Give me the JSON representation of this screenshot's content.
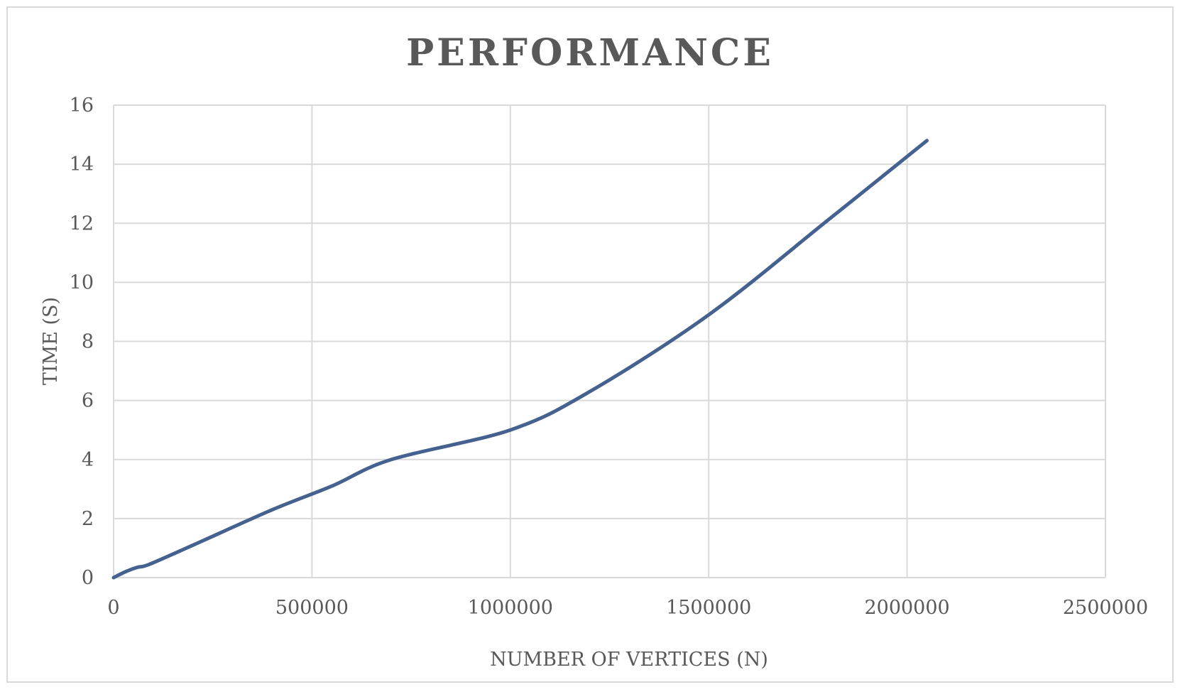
{
  "chart_data": {
    "type": "line",
    "title": "PERFORMANCE",
    "xlabel": "NUMBER OF VERTICES (N)",
    "ylabel": "TIME (S)",
    "xlim": [
      0,
      2500000
    ],
    "ylim": [
      0,
      16
    ],
    "x_ticks": [
      0,
      500000,
      1000000,
      1500000,
      2000000,
      2500000
    ],
    "y_ticks": [
      0,
      2,
      4,
      6,
      8,
      10,
      12,
      14,
      16
    ],
    "x_tick_labels": [
      "0",
      "500000",
      "1000000",
      "1500000",
      "2000000",
      "2500000"
    ],
    "y_tick_labels": [
      "0",
      "2",
      "4",
      "6",
      "8",
      "10",
      "12",
      "14",
      "16"
    ],
    "grid": true,
    "legend": "none",
    "colors": {
      "series": "#44618f",
      "grid": "#d9d9d9",
      "text": "#595959"
    },
    "series": [
      {
        "x": [
          0,
          30000,
          60000,
          90000,
          200000,
          400000,
          550000,
          700000,
          1000000,
          1200000,
          1500000,
          1800000,
          2050000
        ],
        "y": [
          0,
          0.2,
          0.35,
          0.45,
          1.1,
          2.3,
          3.1,
          4.0,
          5.0,
          6.3,
          8.9,
          12.1,
          14.8
        ]
      }
    ]
  }
}
